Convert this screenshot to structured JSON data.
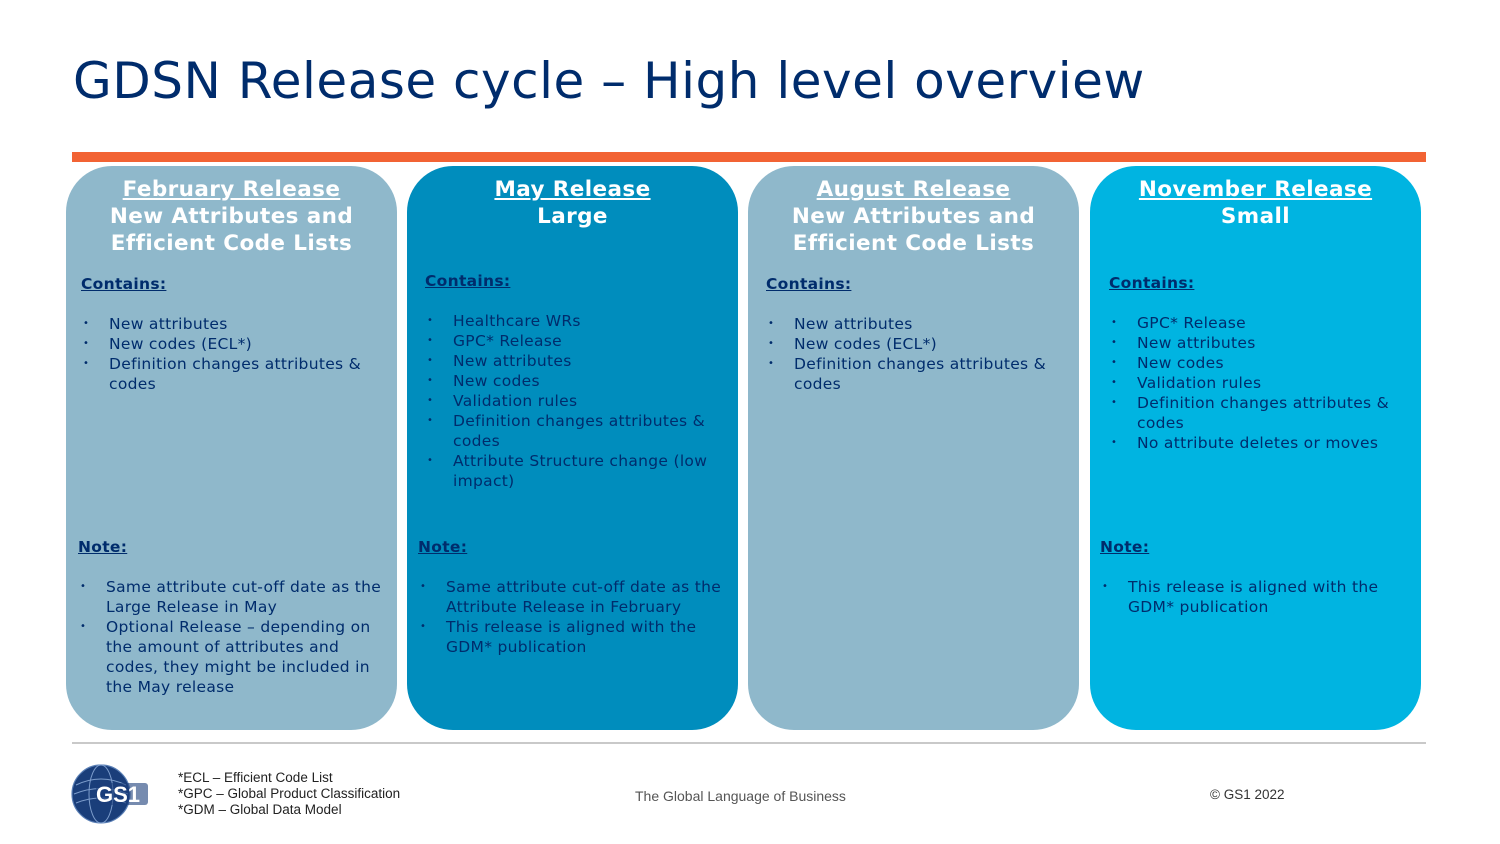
{
  "title": "GDSN Release cycle – High level overview",
  "colors": {
    "navy": "#002c6c",
    "orange": "#f26334",
    "card_gray_blue": "#8fb8cb",
    "card_teal": "#008dbd",
    "card_cyan": "#00b4e1"
  },
  "releases": [
    {
      "name": "February Release",
      "subtitle_line1": "New Attributes and",
      "subtitle_line2": "Efficient Code Lists",
      "contains_label": "Contains:",
      "contains": [
        "New attributes",
        "New codes (ECL*)",
        "Definition changes attributes & codes"
      ],
      "note_label": "Note:",
      "notes": [
        "Same attribute cut-off date as the Large Release in May",
        "Optional Release – depending on the amount of attributes and codes, they might be included in the May release"
      ]
    },
    {
      "name": "May Release",
      "subtitle_line1": "Large",
      "subtitle_line2": "",
      "contains_label": "Contains:",
      "contains": [
        "Healthcare WRs",
        "GPC* Release",
        "New attributes",
        "New codes",
        "Validation rules",
        "Definition changes attributes & codes",
        "Attribute Structure change (low impact)"
      ],
      "note_label": "Note:",
      "notes": [
        "Same attribute cut-off date as the Attribute Release in February",
        "This release is aligned with the GDM* publication"
      ]
    },
    {
      "name": "August Release",
      "subtitle_line1": "New Attributes and",
      "subtitle_line2": "Efficient Code Lists",
      "contains_label": "Contains:",
      "contains": [
        "New attributes",
        "New codes (ECL*)",
        "Definition changes attributes & codes"
      ],
      "note_label": "",
      "notes": []
    },
    {
      "name": "November Release",
      "subtitle_line1": "Small",
      "subtitle_line2": "",
      "contains_label": "Contains:",
      "contains": [
        "GPC* Release",
        "New attributes",
        "New codes",
        "Validation rules",
        "Definition changes attributes & codes",
        "No attribute deletes or moves"
      ],
      "note_label": "Note:",
      "notes": [
        "This release is aligned with the GDM* publication"
      ]
    }
  ],
  "footer": {
    "logo_text": "GS1",
    "footnotes": [
      "*ECL – Efficient Code List",
      "*GPC – Global Product Classification",
      "*GDM – Global Data Model"
    ],
    "tagline": "The Global Language of Business",
    "copyright": "© GS1 2022"
  }
}
